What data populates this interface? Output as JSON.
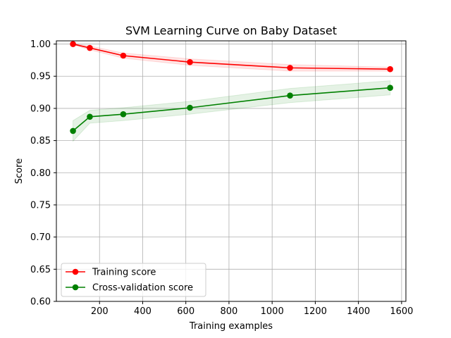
{
  "chart_data": {
    "type": "line",
    "title": "SVM Learning Curve on Baby Dataset",
    "xlabel": "Training examples",
    "ylabel": "Score",
    "xlim": [
      0,
      1620
    ],
    "ylim": [
      0.6,
      1.005
    ],
    "xticks": [
      200,
      400,
      600,
      800,
      1000,
      1200,
      1400,
      1600
    ],
    "xtick_labels": [
      "200",
      "400",
      "600",
      "800",
      "1000",
      "1200",
      "1400",
      "1600"
    ],
    "yticks": [
      0.6,
      0.65,
      0.7,
      0.75,
      0.8,
      0.85,
      0.9,
      0.95,
      1.0
    ],
    "ytick_labels": [
      "0.60",
      "0.65",
      "0.70",
      "0.75",
      "0.80",
      "0.85",
      "0.90",
      "0.95",
      "1.00"
    ],
    "grid": true,
    "legend_position": "lower-left",
    "x": [
      77,
      155,
      310,
      619,
      1083,
      1547
    ],
    "series": [
      {
        "name": "Training score",
        "color": "#ff0000",
        "values": [
          1.0,
          0.994,
          0.982,
          0.972,
          0.963,
          0.961
        ],
        "band_lower": [
          0.999,
          0.991,
          0.978,
          0.967,
          0.958,
          0.958
        ],
        "band_upper": [
          1.001,
          0.997,
          0.986,
          0.977,
          0.968,
          0.964
        ]
      },
      {
        "name": "Cross-validation score",
        "color": "#008000",
        "values": [
          0.865,
          0.887,
          0.891,
          0.901,
          0.92,
          0.932
        ],
        "band_lower": [
          0.849,
          0.877,
          0.881,
          0.891,
          0.909,
          0.921
        ],
        "band_upper": [
          0.881,
          0.897,
          0.901,
          0.911,
          0.931,
          0.943
        ]
      }
    ]
  }
}
